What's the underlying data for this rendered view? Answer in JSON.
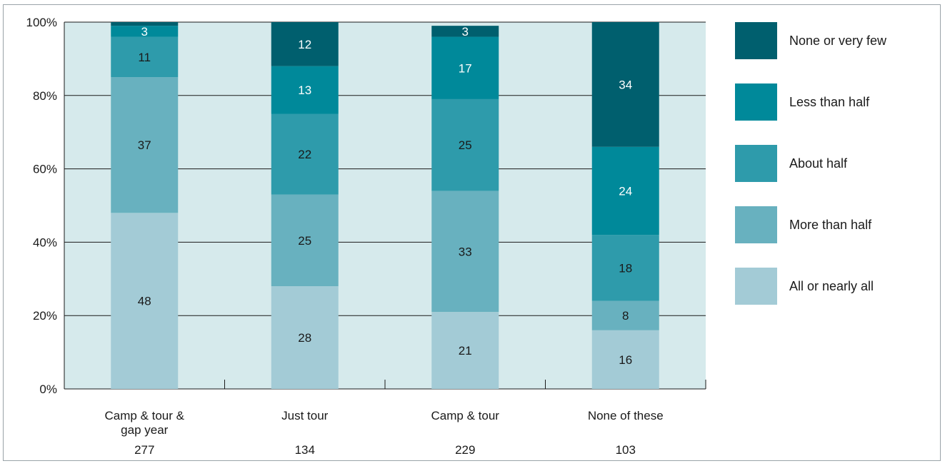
{
  "chart_data": {
    "type": "bar",
    "stacked": true,
    "categories": [
      "Camp & tour & gap year",
      "Just tour",
      "Camp & tour",
      "None of these"
    ],
    "category_label_lines": [
      [
        "Camp & tour &",
        "gap year"
      ],
      [
        "Just tour"
      ],
      [
        "Camp & tour"
      ],
      [
        "None of these"
      ]
    ],
    "category_counts": [
      "277",
      "134",
      "229",
      "103"
    ],
    "series": [
      {
        "name": "All or nearly all",
        "color": "#a3cbd6",
        "values": [
          48,
          28,
          21,
          16
        ]
      },
      {
        "name": "More than half",
        "color": "#68b1bf",
        "values": [
          37,
          25,
          33,
          8
        ]
      },
      {
        "name": "About half",
        "color": "#2e9bab",
        "values": [
          11,
          22,
          25,
          18
        ]
      },
      {
        "name": "Less than half",
        "color": "#00899a",
        "values": [
          3,
          13,
          17,
          24
        ]
      },
      {
        "name": "None or very few",
        "color": "#005f6e",
        "values": [
          1,
          12,
          3,
          34
        ]
      }
    ],
    "hidden_value_labels": [
      [
        false,
        false,
        false,
        false,
        true
      ],
      [
        false,
        false,
        false,
        false,
        false
      ],
      [
        false,
        false,
        false,
        false,
        false
      ],
      [
        false,
        false,
        false,
        false,
        false
      ]
    ],
    "ylim": [
      0,
      100
    ],
    "yticks": [
      "0%",
      "20%",
      "40%",
      "60%",
      "80%",
      "100%"
    ],
    "grid": true,
    "plot_background": "#d6eaec",
    "legend_position": "right",
    "title": "",
    "xlabel": "",
    "ylabel": ""
  }
}
